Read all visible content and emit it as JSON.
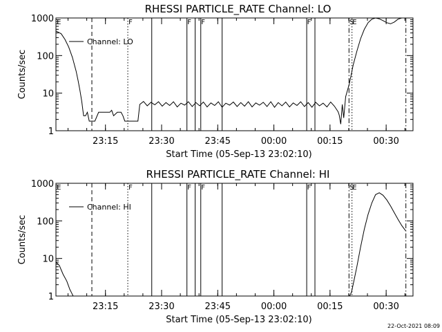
{
  "chart_data": [
    {
      "type": "line",
      "title": "RHESSI PARTICLE_RATE Channel: LO",
      "xlabel": "Start Time (05-Sep-13 23:02:10)",
      "ylabel": "Counts/sec",
      "ylog": true,
      "yticks": [
        1,
        10,
        100,
        1000
      ],
      "ytick_labels": [
        "1",
        "10",
        "100",
        "1000"
      ],
      "xrange_min": [
        -0.4,
        95
      ],
      "xticks_min": [
        12.83,
        27.83,
        42.83,
        57.83,
        72.83,
        87.83
      ],
      "xtick_labels": [
        "23:15",
        "23:30",
        "23:45",
        "00:00",
        "00:15",
        "00:30"
      ],
      "grid": false,
      "legend": "top-left",
      "series": [
        {
          "name": "Channel: LO",
          "x": [
            -0.4,
            1,
            2,
            3,
            4,
            5,
            5.5,
            6,
            6.5,
            6.8,
            7,
            7.5,
            8,
            8.5,
            9,
            10,
            11,
            12,
            13,
            14,
            14.5,
            15,
            16,
            17,
            17.5,
            18,
            20,
            21,
            21.5,
            22,
            23,
            24,
            25,
            26,
            27,
            28,
            29,
            30,
            31,
            32,
            33,
            34,
            35,
            36,
            37,
            38,
            39,
            40,
            41,
            42,
            43,
            44,
            45,
            46,
            47,
            48,
            49,
            50,
            51,
            52,
            53,
            54,
            55,
            56,
            57,
            58,
            59,
            60,
            61,
            62,
            63,
            64,
            65,
            66,
            67,
            68,
            69,
            70,
            71,
            72,
            73,
            74,
            75,
            75.3,
            75.7,
            76.1,
            76.5,
            77,
            78,
            79,
            80,
            81,
            82,
            83,
            84,
            85,
            86,
            87,
            88,
            89,
            90,
            91,
            92,
            93
          ],
          "y": [
            450,
            380,
            270,
            170,
            90,
            38,
            22,
            12,
            6,
            3.5,
            2.5,
            2.5,
            3.1,
            1.8,
            1.8,
            1.8,
            3.1,
            3.1,
            3.1,
            3.1,
            3.5,
            2.5,
            3.1,
            3.1,
            2.5,
            1.8,
            1.8,
            1.8,
            1.8,
            5,
            6,
            4.6,
            5.7,
            4.9,
            5.9,
            4.5,
            5.6,
            4.7,
            5.9,
            4.3,
            5.4,
            4.8,
            5.9,
            4.4,
            5.6,
            4.6,
            5.8,
            4.3,
            5.5,
            4.7,
            5.9,
            4.2,
            5.4,
            4.8,
            5.8,
            4.4,
            5.6,
            4.5,
            5.9,
            4.3,
            5.5,
            4.8,
            5.7,
            4.4,
            5.9,
            4.2,
            5.6,
            4.6,
            5.8,
            4.3,
            5.5,
            4.7,
            5.9,
            4.4,
            5.6,
            4.2,
            5.7,
            4.6,
            5.4,
            4.3,
            5.8,
            4.5,
            3.2,
            2.6,
            1.5,
            5,
            2.2,
            8,
            18,
            55,
            130,
            280,
            500,
            750,
            930,
            1000,
            950,
            850,
            750,
            700,
            780,
            930,
            1000,
            1000
          ]
        }
      ],
      "vlines": [
        {
          "x": 9.2,
          "style": "dashed"
        },
        {
          "x": 18.8,
          "style": "dotted"
        },
        {
          "x": 25.2,
          "style": "solid"
        },
        {
          "x": 34.6,
          "style": "solid"
        },
        {
          "x": 36.8,
          "style": "solid"
        },
        {
          "x": 38.3,
          "style": "solid"
        },
        {
          "x": 44.0,
          "style": "solid"
        },
        {
          "x": 66.6,
          "style": "solid"
        },
        {
          "x": 68.8,
          "style": "solid"
        },
        {
          "x": 77.9,
          "style": "dashdot"
        },
        {
          "x": 78.7,
          "style": "dotted"
        },
        {
          "x": 93.1,
          "style": "dashdot"
        }
      ],
      "flags": [
        {
          "x": -0.2,
          "text": "E"
        },
        {
          "x": 19.0,
          "text": "F"
        },
        {
          "x": 34.7,
          "text": "F"
        },
        {
          "x": 38.4,
          "text": "F"
        },
        {
          "x": 66.7,
          "text": "F"
        },
        {
          "x": 78.0,
          "text": "S"
        },
        {
          "x": 78.8,
          "text": "E"
        }
      ]
    },
    {
      "type": "line",
      "title": "RHESSI PARTICLE_RATE Channel: HI",
      "xlabel": "Start Time (05-Sep-13 23:02:10)",
      "ylabel": "Counts/sec",
      "ylog": true,
      "yticks": [
        1,
        10,
        100,
        1000
      ],
      "ytick_labels": [
        "1",
        "10",
        "100",
        "1000"
      ],
      "xrange_min": [
        -0.4,
        95
      ],
      "xticks_min": [
        12.83,
        27.83,
        42.83,
        57.83,
        72.83,
        87.83
      ],
      "xtick_labels": [
        "23:15",
        "23:30",
        "23:45",
        "00:00",
        "00:15",
        "00:30"
      ],
      "grid": false,
      "legend": "top-left",
      "series": [
        {
          "name": "Channel: HI",
          "x": [
            -0.4,
            0.5,
            1.5,
            2.5,
            3.3,
            3.8,
            4.2
          ],
          "y": [
            8,
            6.5,
            3.8,
            2.5,
            1.5,
            1.2,
            1
          ],
          "y_right": {
            "x": [
              78.1,
              78.6,
              79.2,
              80,
              81,
              82,
              83,
              84,
              85,
              86,
              87,
              88,
              89,
              90,
              91,
              92,
              93
            ],
            "y": [
              1,
              1.3,
              2.5,
              6,
              20,
              60,
              150,
              300,
              500,
              560,
              480,
              360,
              250,
              165,
              110,
              75,
              55
            ]
          }
        }
      ],
      "vlines": [
        {
          "x": 9.2,
          "style": "dashed"
        },
        {
          "x": 18.8,
          "style": "dotted"
        },
        {
          "x": 25.2,
          "style": "solid"
        },
        {
          "x": 34.6,
          "style": "solid"
        },
        {
          "x": 36.8,
          "style": "solid"
        },
        {
          "x": 38.3,
          "style": "solid"
        },
        {
          "x": 44.0,
          "style": "solid"
        },
        {
          "x": 66.6,
          "style": "solid"
        },
        {
          "x": 68.8,
          "style": "solid"
        },
        {
          "x": 77.9,
          "style": "dashdot"
        },
        {
          "x": 78.7,
          "style": "dotted"
        },
        {
          "x": 93.1,
          "style": "dashdot"
        }
      ],
      "flags": [
        {
          "x": -0.2,
          "text": "E"
        },
        {
          "x": 19.0,
          "text": "F"
        },
        {
          "x": 34.7,
          "text": "F"
        },
        {
          "x": 38.4,
          "text": "F"
        },
        {
          "x": 66.7,
          "text": "F"
        },
        {
          "x": 78.0,
          "text": "S"
        },
        {
          "x": 78.8,
          "text": "E"
        }
      ]
    }
  ],
  "footer": {
    "timestamp": "22-Oct-2021 08:09"
  }
}
